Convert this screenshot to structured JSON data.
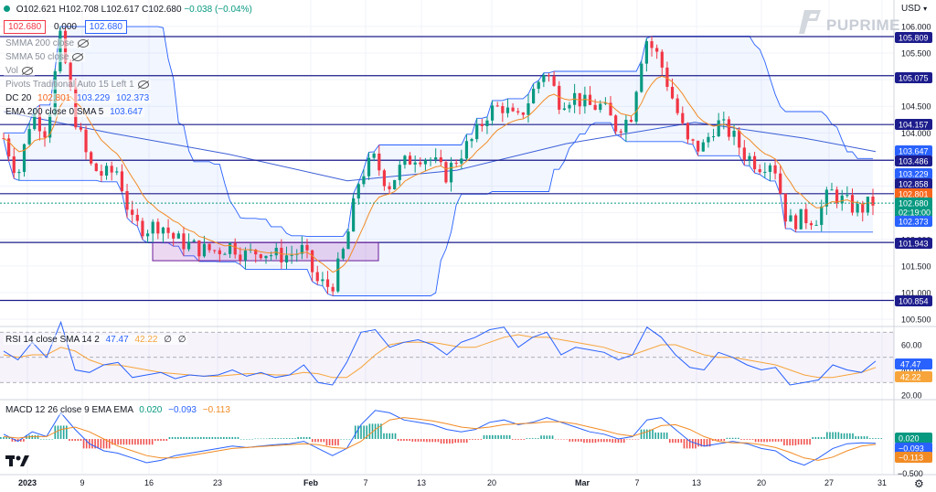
{
  "ohlc": {
    "open": "O102.621",
    "high": "H102.708",
    "low": "L102.617",
    "close": "C102.680",
    "change": "−0.038 (−0.04%)"
  },
  "bid_price": "102.680",
  "spread": "0.000",
  "ask_price": "102.680",
  "currency_label": "USD",
  "logo_text": "PUPRIME",
  "indicators": {
    "sma200": "SMMA 200 close",
    "sma50": "SMMA 50 close",
    "vol": "Vol",
    "pivots": "Pivots Traditional Auto 15 Left 1",
    "dc_label": "DC 20",
    "dc_values": [
      "102.801",
      "103.229",
      "102.373"
    ],
    "ema_label": "EMA 200 close 0 SMA 5",
    "ema_value": "103.647"
  },
  "rsi": {
    "label": "RSI 14 close SMA 14 2",
    "values": [
      "47.47",
      "42.22",
      "∅",
      "∅"
    ],
    "axis_ticks": [
      "60.00",
      "40.00",
      "20.00"
    ],
    "badges": [
      {
        "text": "47.47",
        "color": "#2962ff"
      },
      {
        "text": "42.22",
        "color": "#f7a53a"
      }
    ]
  },
  "macd": {
    "label": "MACD 12 26 close 9 EMA EMA",
    "values": [
      "0.020",
      "−0.093",
      "−0.113"
    ],
    "value_colors": [
      "#089981",
      "#2962ff",
      "#f28b24"
    ],
    "axis_ticks": [
      "−0.500"
    ],
    "badges": [
      {
        "text": "0.020",
        "color": "#089981"
      },
      {
        "text": "−0.093",
        "color": "#2962ff"
      },
      {
        "text": "−0.113",
        "color": "#f28b24"
      }
    ]
  },
  "price_axis": {
    "ticks": [
      "106.000",
      "105.500",
      "105.000",
      "104.500",
      "104.000",
      "103.500",
      "103.000",
      "102.500",
      "102.000",
      "101.500",
      "101.000",
      "100.500"
    ],
    "levels": [
      {
        "text": "105.809",
        "bg": "#1c1c8c"
      },
      {
        "text": "105.075",
        "bg": "#1c1c8c"
      },
      {
        "text": "104.157",
        "bg": "#1c1c8c"
      },
      {
        "text": "103.647",
        "bg": "#2962ff"
      },
      {
        "text": "103.486",
        "bg": "#1c1c8c"
      },
      {
        "text": "103.229",
        "bg": "#2962ff"
      },
      {
        "text": "102.858",
        "bg": "#1c1c8c"
      },
      {
        "text": "102.801",
        "bg": "#f7671c"
      },
      {
        "text": "102.680",
        "bg": "#089981"
      },
      {
        "text": "02:19:00",
        "bg": "#089981"
      },
      {
        "text": "102.373",
        "bg": "#2962ff"
      },
      {
        "text": "101.943",
        "bg": "#1c1c8c"
      },
      {
        "text": "100.854",
        "bg": "#1c1c8c"
      }
    ]
  },
  "time_axis": [
    "2023",
    "9",
    "16",
    "23",
    "Feb",
    "7",
    "13",
    "20",
    "Mar",
    "7",
    "13",
    "20",
    "27",
    "31"
  ],
  "colors": {
    "up": "#089981",
    "down": "#f23645",
    "pivot": "#1c1c8c",
    "channel": "#2962ff",
    "ema": "#f28b24",
    "sma200": "#3d5fd6"
  },
  "chart_data": {
    "type": "candlestick",
    "title": "",
    "pivot_levels": [
      105.809,
      105.075,
      104.157,
      103.486,
      102.858,
      101.943,
      100.854
    ],
    "ylim": [
      100.5,
      106.1
    ],
    "close_path": [
      103.9,
      103.2,
      104.4,
      104.0,
      105.8,
      104.3,
      103.4,
      103.2,
      103.3,
      102.3,
      102.2,
      102.3,
      102.0,
      101.9,
      101.8,
      101.8,
      101.9,
      101.7,
      101.8,
      101.7,
      101.7,
      101.8,
      101.2,
      101.1,
      101.9,
      103.2,
      103.5,
      103.0,
      103.4,
      103.6,
      103.5,
      103.2,
      103.6,
      103.9,
      104.4,
      104.5,
      104.2,
      104.7,
      105.2,
      104.6,
      104.7,
      104.5,
      104.5,
      104.1,
      104.3,
      105.8,
      105.4,
      104.6,
      103.8,
      103.7,
      104.2,
      104.0,
      103.6,
      103.4,
      103.5,
      102.3,
      102.4,
      102.4,
      102.9,
      102.7,
      102.55,
      102.7
    ],
    "rsi_path": [
      55,
      48,
      62,
      50,
      78,
      40,
      38,
      44,
      46,
      34,
      36,
      38,
      33,
      36,
      35,
      36,
      40,
      35,
      38,
      34,
      36,
      44,
      30,
      28,
      46,
      70,
      72,
      58,
      62,
      64,
      60,
      52,
      62,
      66,
      72,
      74,
      58,
      66,
      70,
      52,
      58,
      56,
      54,
      48,
      52,
      74,
      66,
      52,
      42,
      40,
      54,
      50,
      44,
      40,
      42,
      28,
      30,
      32,
      44,
      40,
      38,
      47
    ],
    "rsi_sma_path": [
      52,
      50,
      52,
      52,
      58,
      55,
      48,
      44,
      44,
      42,
      40,
      38,
      37,
      36,
      35,
      35,
      36,
      37,
      37,
      36,
      36,
      38,
      37,
      34,
      34,
      42,
      52,
      60,
      62,
      62,
      62,
      60,
      58,
      58,
      62,
      66,
      68,
      66,
      66,
      64,
      62,
      60,
      58,
      54,
      52,
      56,
      60,
      60,
      56,
      52,
      50,
      50,
      48,
      46,
      44,
      40,
      36,
      34,
      34,
      36,
      38,
      42
    ],
    "macd_path": [
      0.1,
      -0.05,
      0.15,
      0.05,
      0.55,
      0.2,
      -0.1,
      -0.25,
      -0.3,
      -0.4,
      -0.5,
      -0.45,
      -0.35,
      -0.3,
      -0.25,
      -0.2,
      -0.15,
      -0.18,
      -0.15,
      -0.12,
      -0.1,
      -0.05,
      -0.2,
      -0.35,
      -0.2,
      0.3,
      0.6,
      0.55,
      0.4,
      0.35,
      0.3,
      0.2,
      0.15,
      0.2,
      0.35,
      0.4,
      0.3,
      0.35,
      0.45,
      0.35,
      0.25,
      0.15,
      0.1,
      0.0,
      0.05,
      0.4,
      0.45,
      0.2,
      -0.05,
      -0.15,
      -0.1,
      -0.05,
      -0.1,
      -0.2,
      -0.25,
      -0.45,
      -0.55,
      -0.4,
      -0.2,
      -0.1,
      -0.08,
      -0.093
    ],
    "signal_path": [
      0.05,
      0.02,
      0.05,
      0.05,
      0.2,
      0.25,
      0.15,
      0.0,
      -0.15,
      -0.25,
      -0.35,
      -0.4,
      -0.4,
      -0.35,
      -0.3,
      -0.25,
      -0.2,
      -0.18,
      -0.16,
      -0.14,
      -0.12,
      -0.1,
      -0.12,
      -0.18,
      -0.2,
      -0.05,
      0.2,
      0.4,
      0.45,
      0.42,
      0.38,
      0.32,
      0.25,
      0.22,
      0.25,
      0.3,
      0.32,
      0.33,
      0.36,
      0.36,
      0.32,
      0.25,
      0.18,
      0.1,
      0.06,
      0.15,
      0.28,
      0.3,
      0.2,
      0.05,
      -0.05,
      -0.08,
      -0.08,
      -0.12,
      -0.18,
      -0.28,
      -0.4,
      -0.45,
      -0.38,
      -0.25,
      -0.15,
      -0.113
    ]
  }
}
